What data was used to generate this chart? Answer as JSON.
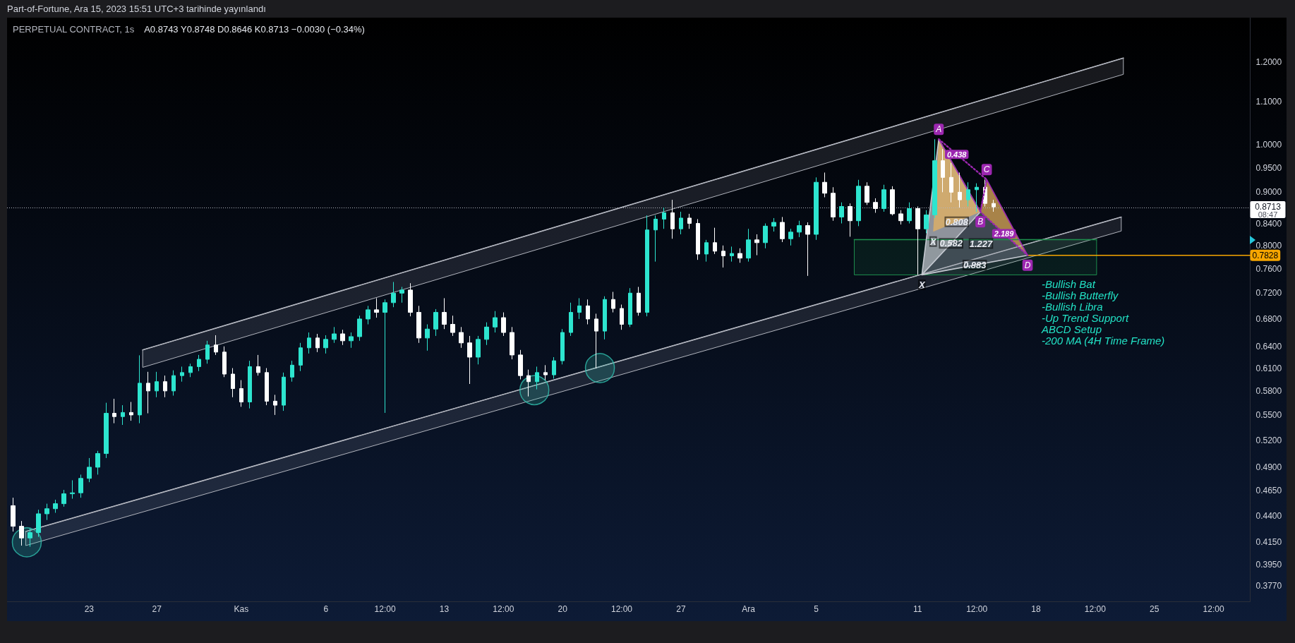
{
  "chart_data": {
    "type": "candlestick",
    "title": "PERPETUAL CONTRACT, 1s",
    "subtitle": "A0.8743 Y0.8748 D0.8646 K0.8713 −0.0030 (−0.34%)",
    "annotations": [
      "Part-of-Fortune, Ara 15, 2023 15:51 UTC+3 tarihinde yayınlandı",
      "08:47",
      "1.227",
      "-Bullish Bat",
      "-Bullish Butterfly",
      "-Bullish Libra",
      "-Up Trend Support",
      "ABCD Setup",
      "-200 MA (4H Time Frame)",
      {
        "text": "X",
        "x": "2023-12-11T22:00",
        "y": 0.8247
      },
      {
        "text": "0.808",
        "x": "2023-12-13T07:30",
        "y": 0.843
      },
      {
        "text": "0.582",
        "x": "2023-12-12T23:30",
        "y": 0.8038
      },
      {
        "text": "0.438",
        "x": "2023-12-13T07:30",
        "y": 0.9786
      },
      {
        "text": "2.189",
        "x": "2023-12-16T02:30",
        "y": 0.8213
      },
      {
        "text": "0.883",
        "x": "2023-12-14T09:00",
        "y": 0.7661
      },
      {
        "text": "X",
        "x": "2023-12-11T06:00",
        "y": 0.7497
      }
    ],
    "log": true,
    "xlim": [
      "2023-10-18T03:30",
      "2023-12-30T16:00"
    ],
    "ylim": [
      0.3642,
      1.324
    ],
    "xticks": [
      {
        "value": "2023-10-23",
        "label": "23"
      },
      {
        "value": "2023-10-27",
        "label": "27"
      },
      {
        "value": "2023-11-01",
        "label": "Kas"
      },
      {
        "value": "2023-11-06",
        "label": "6"
      },
      {
        "value": "2023-11-09T12:00",
        "label": "12:00"
      },
      {
        "value": "2023-11-13",
        "label": "13"
      },
      {
        "value": "2023-11-16T12:00",
        "label": "12:00"
      },
      {
        "value": "2023-11-20",
        "label": "20"
      },
      {
        "value": "2023-11-23T12:00",
        "label": "12:00"
      },
      {
        "value": "2023-11-27",
        "label": "27"
      },
      {
        "value": "2023-12-01",
        "label": "Ara"
      },
      {
        "value": "2023-12-05",
        "label": "5"
      },
      {
        "value": "2023-12-11",
        "label": "11"
      },
      {
        "value": "2023-12-14T12:00",
        "label": "12:00"
      },
      {
        "value": "2023-12-18",
        "label": "18"
      },
      {
        "value": "2023-12-21T12:00",
        "label": "12:00"
      },
      {
        "value": "2023-12-25",
        "label": "25"
      },
      {
        "value": "2023-12-28T12:00",
        "label": "12:00"
      }
    ],
    "yticks": [
      {
        "value": 1.2,
        "label": "1.2000"
      },
      {
        "value": 1.1,
        "label": "1.1000"
      },
      {
        "value": 1.0,
        "label": "1.0000"
      },
      {
        "value": 0.95,
        "label": "0.9500"
      },
      {
        "value": 0.9,
        "label": "0.9000"
      },
      {
        "value": 0.84,
        "label": "0.8400"
      },
      {
        "value": 0.8,
        "label": "0.8000"
      },
      {
        "value": 0.76,
        "label": "0.7600"
      },
      {
        "value": 0.72,
        "label": "0.7200"
      },
      {
        "value": 0.68,
        "label": "0.6800"
      },
      {
        "value": 0.64,
        "label": "0.6400"
      },
      {
        "value": 0.61,
        "label": "0.6100"
      },
      {
        "value": 0.58,
        "label": "0.5800"
      },
      {
        "value": 0.55,
        "label": "0.5500"
      },
      {
        "value": 0.52,
        "label": "0.5200"
      },
      {
        "value": 0.49,
        "label": "0.4900"
      },
      {
        "value": 0.465,
        "label": "0.4650"
      },
      {
        "value": 0.44,
        "label": "0.4400"
      },
      {
        "value": 0.415,
        "label": "0.4150"
      },
      {
        "value": 0.395,
        "label": "0.3950"
      },
      {
        "value": 0.377,
        "label": "0.3770"
      }
    ],
    "ref_lines": [
      {
        "axis": "y",
        "value": 0.8713,
        "label": "0.8713",
        "line_style": "dotted",
        "color": "#b2b5be"
      }
    ],
    "series": [
      {
        "colors": [
          "#ffffff",
          "#ffffff",
          "#2de5cf",
          "#2de5cf",
          "#2de5cf",
          "#2de5cf",
          "#2de5cf",
          "#2de5cf",
          "#2de5cf",
          "#2de5cf",
          "#2de5cf",
          "#2de5cf",
          "#ffffff",
          "#2de5cf",
          "#ffffff",
          "#2de5cf",
          "#ffffff",
          "#2de5cf",
          "#ffffff",
          "#2de5cf",
          "#2de5cf",
          "#2de5cf",
          "#2de5cf",
          "#2de5cf",
          "#ffffff",
          "#ffffff",
          "#ffffff",
          "#ffffff",
          "#2de5cf",
          "#ffffff",
          "#ffffff",
          "#ffffff",
          "#2de5cf",
          "#2de5cf",
          "#2de5cf",
          "#2de5cf",
          "#ffffff",
          "#2de5cf",
          "#2de5cf",
          "#ffffff",
          "#2de5cf",
          "#2de5cf",
          "#2de5cf",
          "#ffffff",
          "#2de5cf",
          "#2de5cf",
          "#2de5cf",
          "#ffffff",
          "#ffffff",
          "#2de5cf",
          "#2de5cf",
          "#ffffff",
          "#ffffff",
          "#ffffff",
          "#ffffff",
          "#2de5cf",
          "#2de5cf",
          "#2de5cf",
          "#ffffff",
          "#ffffff",
          "#ffffff",
          "#ffffff",
          "#2de5cf",
          "#ffffff",
          "#2de5cf",
          "#2de5cf",
          "#2de5cf",
          "#2de5cf",
          "#ffffff",
          "#ffffff",
          "#2de5cf",
          "#ffffff",
          "#ffffff",
          "#2de5cf",
          "#ffffff",
          "#2de5cf",
          "#2de5cf",
          "#2de5cf",
          "#ffffff",
          "#2de5cf",
          "#ffffff",
          "#ffffff",
          "#2de5cf",
          "#ffffff",
          "#ffffff",
          "#2de5cf",
          "#ffffff",
          "#2de5cf",
          "#ffffff",
          "#2de5cf",
          "#2de5cf",
          "#ffffff",
          "#2de5cf",
          "#2de5cf",
          "#ffffff",
          "#2de5cf",
          "#ffffff",
          "#ffffff",
          "#2de5cf",
          "#ffffff",
          "#2de5cf",
          "#ffffff",
          "#ffffff",
          "#2de5cf",
          "#ffffff",
          "#ffffff",
          "#2de5cf",
          "#ffffff",
          "#2de5cf",
          "#2de5cf",
          "#ffffff",
          "#ffffff",
          "#ffffff",
          "#2de5cf",
          "#2de5cf",
          "#ffffff",
          "#ffffff"
        ],
        "x": [
          "2023-10-18T12:00",
          "2023-10-19T00:00",
          "2023-10-19T12:00",
          "2023-10-20T00:00",
          "2023-10-20T12:00",
          "2023-10-21T00:00",
          "2023-10-21T12:00",
          "2023-10-22T00:00",
          "2023-10-22T12:00",
          "2023-10-23T00:00",
          "2023-10-23T12:00",
          "2023-10-24T00:00",
          "2023-10-24T12:00",
          "2023-10-25T00:00",
          "2023-10-25T12:00",
          "2023-10-26T00:00",
          "2023-10-26T12:00",
          "2023-10-27T00:00",
          "2023-10-27T12:00",
          "2023-10-28T00:00",
          "2023-10-28T12:00",
          "2023-10-29T00:00",
          "2023-10-29T12:00",
          "2023-10-30T00:00",
          "2023-10-30T12:00",
          "2023-10-31T00:00",
          "2023-10-31T12:00",
          "2023-11-01T00:00",
          "2023-11-01T12:00",
          "2023-11-02T00:00",
          "2023-11-02T12:00",
          "2023-11-03T00:00",
          "2023-11-03T12:00",
          "2023-11-04T00:00",
          "2023-11-04T12:00",
          "2023-11-05T00:00",
          "2023-11-05T12:00",
          "2023-11-06T00:00",
          "2023-11-06T12:00",
          "2023-11-07T00:00",
          "2023-11-07T12:00",
          "2023-11-08T00:00",
          "2023-11-08T12:00",
          "2023-11-09T00:00",
          "2023-11-09T12:00",
          "2023-11-10T00:00",
          "2023-11-10T12:00",
          "2023-11-11T00:00",
          "2023-11-11T12:00",
          "2023-11-12T00:00",
          "2023-11-12T12:00",
          "2023-11-13T00:00",
          "2023-11-13T12:00",
          "2023-11-14T00:00",
          "2023-11-14T12:00",
          "2023-11-15T00:00",
          "2023-11-15T12:00",
          "2023-11-16T00:00",
          "2023-11-16T12:00",
          "2023-11-17T00:00",
          "2023-11-17T12:00",
          "2023-11-18T00:00",
          "2023-11-18T12:00",
          "2023-11-19T00:00",
          "2023-11-19T12:00",
          "2023-11-20T00:00",
          "2023-11-20T12:00",
          "2023-11-21T00:00",
          "2023-11-21T12:00",
          "2023-11-22T00:00",
          "2023-11-22T12:00",
          "2023-11-23T00:00",
          "2023-11-23T12:00",
          "2023-11-24T00:00",
          "2023-11-24T12:00",
          "2023-11-25T00:00",
          "2023-11-25T12:00",
          "2023-11-26T00:00",
          "2023-11-26T12:00",
          "2023-11-27T00:00",
          "2023-11-27T12:00",
          "2023-11-28T00:00",
          "2023-11-28T12:00",
          "2023-11-29T00:00",
          "2023-11-29T12:00",
          "2023-11-30T00:00",
          "2023-11-30T12:00",
          "2023-12-01T00:00",
          "2023-12-01T12:00",
          "2023-12-02T00:00",
          "2023-12-02T12:00",
          "2023-12-03T00:00",
          "2023-12-03T12:00",
          "2023-12-04T00:00",
          "2023-12-04T12:00",
          "2023-12-05T00:00",
          "2023-12-05T12:00",
          "2023-12-06T00:00",
          "2023-12-06T12:00",
          "2023-12-07T00:00",
          "2023-12-07T12:00",
          "2023-12-08T00:00",
          "2023-12-08T12:00",
          "2023-12-09T00:00",
          "2023-12-09T12:00",
          "2023-12-10T00:00",
          "2023-12-10T12:00",
          "2023-12-11T00:00",
          "2023-12-11T12:00",
          "2023-12-12T00:00",
          "2023-12-12T12:00",
          "2023-12-13T00:00",
          "2023-12-13T12:00",
          "2023-12-14T00:00",
          "2023-12-14T12:00",
          "2023-12-15T00:00",
          "2023-12-15T12:00"
        ],
        "ohlc": [
          [
            0.45,
            0.458,
            0.425,
            0.43
          ],
          [
            0.43,
            0.435,
            0.412,
            0.419
          ],
          [
            0.419,
            0.428,
            0.411,
            0.424
          ],
          [
            0.424,
            0.446,
            0.42,
            0.442
          ],
          [
            0.442,
            0.452,
            0.436,
            0.447
          ],
          [
            0.447,
            0.456,
            0.443,
            0.452
          ],
          [
            0.452,
            0.466,
            0.449,
            0.462
          ],
          [
            0.462,
            0.476,
            0.457,
            0.463
          ],
          [
            0.463,
            0.482,
            0.458,
            0.478
          ],
          [
            0.478,
            0.5,
            0.474,
            0.49
          ],
          [
            0.49,
            0.508,
            0.482,
            0.505
          ],
          [
            0.505,
            0.565,
            0.5,
            0.552
          ],
          [
            0.552,
            0.57,
            0.54,
            0.548
          ],
          [
            0.548,
            0.562,
            0.538,
            0.553
          ],
          [
            0.553,
            0.566,
            0.543,
            0.55
          ],
          [
            0.55,
            0.6275,
            0.54,
            0.59
          ],
          [
            0.59,
            0.605,
            0.552,
            0.58
          ],
          [
            0.58,
            0.605,
            0.572,
            0.592
          ],
          [
            0.592,
            0.6,
            0.572,
            0.58
          ],
          [
            0.58,
            0.607,
            0.574,
            0.6
          ],
          [
            0.6,
            0.612,
            0.592,
            0.604
          ],
          [
            0.604,
            0.616,
            0.598,
            0.612
          ],
          [
            0.612,
            0.628,
            0.606,
            0.622
          ],
          [
            0.622,
            0.648,
            0.616,
            0.642
          ],
          [
            0.642,
            0.656,
            0.628,
            0.632
          ],
          [
            0.632,
            0.64,
            0.598,
            0.602
          ],
          [
            0.602,
            0.61,
            0.572,
            0.583
          ],
          [
            0.583,
            0.594,
            0.56,
            0.566
          ],
          [
            0.566,
            0.62,
            0.558,
            0.612
          ],
          [
            0.612,
            0.628,
            0.6,
            0.604
          ],
          [
            0.604,
            0.61,
            0.562,
            0.567
          ],
          [
            0.567,
            0.575,
            0.55,
            0.562
          ],
          [
            0.562,
            0.604,
            0.555,
            0.598
          ],
          [
            0.598,
            0.62,
            0.592,
            0.614
          ],
          [
            0.614,
            0.645,
            0.606,
            0.638
          ],
          [
            0.638,
            0.66,
            0.63,
            0.652
          ],
          [
            0.652,
            0.658,
            0.632,
            0.638
          ],
          [
            0.638,
            0.656,
            0.63,
            0.65
          ],
          [
            0.65,
            0.668,
            0.645,
            0.658
          ],
          [
            0.658,
            0.664,
            0.642,
            0.648
          ],
          [
            0.648,
            0.66,
            0.638,
            0.654
          ],
          [
            0.654,
            0.685,
            0.648,
            0.68
          ],
          [
            0.68,
            0.7,
            0.672,
            0.694
          ],
          [
            0.694,
            0.712,
            0.682,
            0.69
          ],
          [
            0.69,
            0.71,
            0.5525,
            0.705
          ],
          [
            0.705,
            0.738,
            0.698,
            0.72
          ],
          [
            0.72,
            0.73,
            0.705,
            0.725
          ],
          [
            0.725,
            0.736,
            0.684,
            0.69
          ],
          [
            0.69,
            0.7,
            0.645,
            0.652
          ],
          [
            0.652,
            0.672,
            0.634,
            0.665
          ],
          [
            0.665,
            0.695,
            0.655,
            0.69
          ],
          [
            0.69,
            0.712,
            0.665,
            0.672
          ],
          [
            0.672,
            0.685,
            0.655,
            0.66
          ],
          [
            0.66,
            0.668,
            0.638,
            0.645
          ],
          [
            0.645,
            0.655,
            0.589,
            0.625
          ],
          [
            0.625,
            0.655,
            0.615,
            0.65
          ],
          [
            0.65,
            0.675,
            0.642,
            0.668
          ],
          [
            0.668,
            0.692,
            0.66,
            0.682
          ],
          [
            0.682,
            0.69,
            0.655,
            0.66
          ],
          [
            0.66,
            0.668,
            0.622,
            0.628
          ],
          [
            0.628,
            0.635,
            0.595,
            0.6
          ],
          [
            0.6,
            0.608,
            0.573,
            0.592
          ],
          [
            0.592,
            0.612,
            0.582,
            0.604
          ],
          [
            0.604,
            0.614,
            0.594,
            0.601
          ],
          [
            0.601,
            0.625,
            0.596,
            0.62
          ],
          [
            0.62,
            0.665,
            0.615,
            0.66
          ],
          [
            0.66,
            0.705,
            0.655,
            0.69
          ],
          [
            0.69,
            0.712,
            0.68,
            0.7
          ],
          [
            0.7,
            0.71,
            0.672,
            0.68
          ],
          [
            0.68,
            0.688,
            0.6095,
            0.662
          ],
          [
            0.662,
            0.715,
            0.65,
            0.71
          ],
          [
            0.71,
            0.722,
            0.69,
            0.696
          ],
          [
            0.696,
            0.702,
            0.664,
            0.672
          ],
          [
            0.672,
            0.728,
            0.668,
            0.72
          ],
          [
            0.72,
            0.73,
            0.685,
            0.69
          ],
          [
            0.69,
            0.855,
            0.684,
            0.828
          ],
          [
            0.828,
            0.855,
            0.772,
            0.848
          ],
          [
            0.848,
            0.87,
            0.83,
            0.86
          ],
          [
            0.86,
            0.885,
            0.812,
            0.83
          ],
          [
            0.83,
            0.862,
            0.82,
            0.85
          ],
          [
            0.85,
            0.858,
            0.83,
            0.84
          ],
          [
            0.84,
            0.848,
            0.775,
            0.785
          ],
          [
            0.785,
            0.81,
            0.772,
            0.805
          ],
          [
            0.805,
            0.832,
            0.785,
            0.79
          ],
          [
            0.79,
            0.8,
            0.762,
            0.782
          ],
          [
            0.782,
            0.798,
            0.772,
            0.786
          ],
          [
            0.786,
            0.795,
            0.77,
            0.778
          ],
          [
            0.778,
            0.83,
            0.772,
            0.81
          ],
          [
            0.81,
            0.82,
            0.783,
            0.805
          ],
          [
            0.805,
            0.84,
            0.795,
            0.835
          ],
          [
            0.835,
            0.85,
            0.825,
            0.842
          ],
          [
            0.842,
            0.852,
            0.806,
            0.812
          ],
          [
            0.812,
            0.83,
            0.8,
            0.824
          ],
          [
            0.824,
            0.845,
            0.815,
            0.836
          ],
          [
            0.836,
            0.842,
            0.748,
            0.82
          ],
          [
            0.82,
            0.93,
            0.81,
            0.92
          ],
          [
            0.92,
            0.94,
            0.89,
            0.898
          ],
          [
            0.898,
            0.91,
            0.845,
            0.852
          ],
          [
            0.852,
            0.88,
            0.84,
            0.872
          ],
          [
            0.872,
            0.878,
            0.8157,
            0.845
          ],
          [
            0.845,
            0.925,
            0.835,
            0.912
          ],
          [
            0.912,
            0.92,
            0.875,
            0.88
          ],
          [
            0.88,
            0.888,
            0.86,
            0.868
          ],
          [
            0.868,
            0.915,
            0.862,
            0.905
          ],
          [
            0.905,
            0.912,
            0.855,
            0.858
          ],
          [
            0.858,
            0.865,
            0.838,
            0.845
          ],
          [
            0.845,
            0.88,
            0.84,
            0.868
          ],
          [
            0.868,
            0.872,
            0.7497,
            0.83
          ],
          [
            0.83,
            0.865,
            0.822,
            0.856
          ],
          [
            0.856,
            1.012,
            0.85,
            0.965
          ],
          [
            0.965,
            0.99,
            0.9,
            0.93
          ],
          [
            0.93,
            0.96,
            0.88,
            0.9
          ],
          [
            0.9,
            0.94,
            0.87,
            0.885
          ],
          [
            0.885,
            0.92,
            0.872,
            0.905
          ],
          [
            0.905,
            0.918,
            0.8617,
            0.91
          ],
          [
            0.91,
            0.9256,
            0.872,
            0.878
          ],
          [
            0.878,
            0.885,
            0.862,
            0.8713
          ]
        ]
      },
      {
        "type": "line",
        "x": [
          "2023-10-26T04:00",
          "2023-12-23T04:00"
        ],
        "values": [
          0.635,
          1.211
        ],
        "lower": [
          0.611,
          1.168
        ],
        "upper": [
          0.635,
          1.211
        ],
        "color": "#b2b5be"
      },
      {
        "type": "line",
        "x": [
          "2023-10-19T06:00",
          "2023-12-23T01:00"
        ],
        "values": [
          0.425,
          0.852
        ],
        "lower": [
          0.412,
          0.826
        ],
        "upper": [
          0.425,
          0.852
        ],
        "color": "#b2b5be"
      },
      {
        "type": "line",
        "x": [
          "2023-12-07T06:00",
          "2023-12-21T14:00"
        ],
        "values": [
          0.8105,
          0.8105
        ],
        "lower": [
          0.7497,
          0.7497
        ],
        "upper": [
          0.8105,
          0.8105
        ],
        "color": "#1e8f4e"
      },
      {
        "type": "area",
        "x": [
          "2023-12-11T06:00",
          "2023-12-12T06:00",
          "2023-12-14T17:00"
        ],
        "values": [
          0.7497,
          1.012,
          0.8617
        ],
        "color": "#c5c9d1"
      },
      {
        "type": "area",
        "x": [
          "2023-12-11T06:00",
          "2023-12-14T17:00",
          "2023-12-17T12:00"
        ],
        "values": [
          0.7497,
          0.8617,
          0.7828
        ],
        "color": "#56606b"
      },
      {
        "type": "area",
        "x": [
          "2023-12-11T22:00",
          "2023-12-12T06:00",
          "2023-12-14T17:00"
        ],
        "values": [
          0.8247,
          1.012,
          0.8617
        ],
        "color": "#e8b35e"
      },
      {
        "type": "area",
        "x": [
          "2023-12-14T17:00",
          "2023-12-15T02:00",
          "2023-12-17T12:00"
        ],
        "values": [
          0.8617,
          0.9256,
          0.7828
        ],
        "color": "#e8b35e"
      },
      {
        "type": "line",
        "x": [
          "2023-12-11T06:00",
          "2023-12-12T06:00",
          "2023-12-14T17:00",
          "2023-12-11T06:00",
          "2023-12-17T12:00"
        ],
        "values": [
          0.7497,
          1.012,
          0.8617,
          0.7497,
          0.7828
        ],
        "color": "#c5c9d1"
      },
      {
        "type": "line",
        "x": [
          "2023-12-12T06:00",
          "2023-12-14T17:00",
          "2023-12-15T02:00",
          "2023-12-17T12:00"
        ],
        "values": [
          1.012,
          0.8617,
          0.9256,
          0.7828
        ],
        "color": "#9c27b0",
        "value_labels": [
          "A",
          "B",
          "C",
          "D"
        ]
      },
      {
        "type": "line",
        "line_style": "dotted",
        "x": [
          "2023-12-12T06:00",
          "2023-12-15T02:00",
          "2023-12-14T17:00",
          "2023-12-17T12:00"
        ],
        "values": [
          1.012,
          0.9256,
          0.8617,
          0.7828
        ],
        "color": "#9c27b0"
      },
      {
        "type": "line",
        "x": [
          "2023-12-17T12:00",
          "2023-12-30T16:00"
        ],
        "values": [
          0.7828,
          0.7828
        ],
        "color": "#f7a600",
        "value_labels": [
          null,
          "0.7828"
        ]
      },
      {
        "type": "scatter",
        "marker": "circle",
        "x": [
          "2023-10-19T07:30",
          "2023-11-18T08:00",
          "2023-11-22T05:00"
        ],
        "values": [
          0.415,
          0.581,
          0.61
        ],
        "color": "#2fbfae"
      }
    ]
  }
}
